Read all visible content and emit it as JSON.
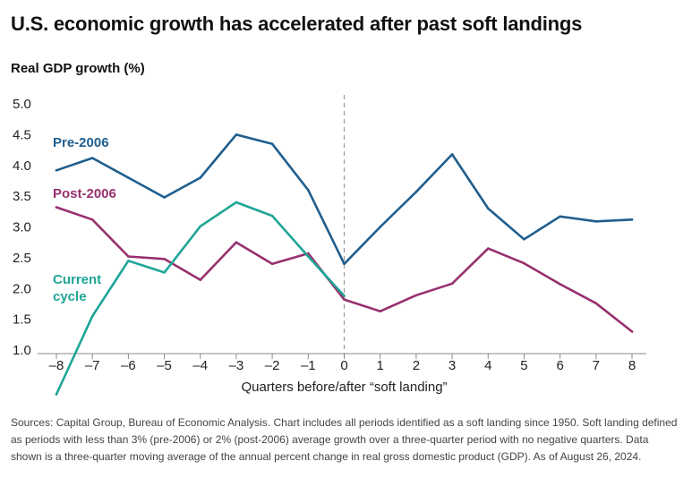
{
  "title": "U.S. economic growth has accelerated after past soft landings",
  "notes": "Sources: Capital Group, Bureau of Economic Analysis. Chart includes all periods identified as a soft landing since 1950. Soft landing defined as periods with less than 3% (pre-2006) or 2% (post-2006) average growth over a three-quarter period with no negative quarters. Data shown is a three-quarter moving average of the annual percent change in real gross domestic product (GDP). As of August 26, 2024.",
  "chart_data": {
    "type": "line",
    "title": "U.S. economic growth has accelerated after past soft landings",
    "ylabel": "Real GDP growth (%)",
    "xlabel": "Quarters before/after “soft landing”",
    "ylim": [
      1.0,
      5.0
    ],
    "yticks": [
      "5.0",
      "4.5",
      "4.0",
      "3.5",
      "3.0",
      "2.5",
      "2.0",
      "1.5",
      "1.0"
    ],
    "x": [
      -8,
      -7,
      -6,
      -5,
      -4,
      -3,
      -2,
      -1,
      0,
      1,
      2,
      3,
      4,
      5,
      6,
      7,
      8
    ],
    "xtick_labels": [
      "–8",
      "–7",
      "–6",
      "–5",
      "–4",
      "–3",
      "–2",
      "–1",
      "0",
      "1",
      "2",
      "3",
      "4",
      "5",
      "6",
      "7",
      "8"
    ],
    "reference_line_x": 0,
    "series": [
      {
        "name": "Pre-2006",
        "label_lines": [
          "Pre-2006"
        ],
        "color": "#1f5e8e",
        "values": [
          3.92,
          4.12,
          3.8,
          3.48,
          3.8,
          4.5,
          4.35,
          3.6,
          2.4,
          3.0,
          3.57,
          4.18,
          3.3,
          2.8,
          3.17,
          3.09,
          3.12
        ]
      },
      {
        "name": "Post-2006",
        "label_lines": [
          "Post-2006"
        ],
        "color": "#97306f",
        "values": [
          3.32,
          3.12,
          2.52,
          2.48,
          2.14,
          2.75,
          2.4,
          2.57,
          1.82,
          1.63,
          1.89,
          2.08,
          2.65,
          2.41,
          2.07,
          1.76,
          1.3
        ]
      },
      {
        "name": "Current cycle",
        "label_lines": [
          "Current",
          "cycle"
        ],
        "color": "#1fa597",
        "values": [
          0.28,
          1.55,
          2.45,
          2.26,
          3.01,
          3.4,
          3.18,
          2.52,
          1.88,
          null,
          null,
          null,
          null,
          null,
          null,
          null,
          null
        ]
      }
    ]
  }
}
